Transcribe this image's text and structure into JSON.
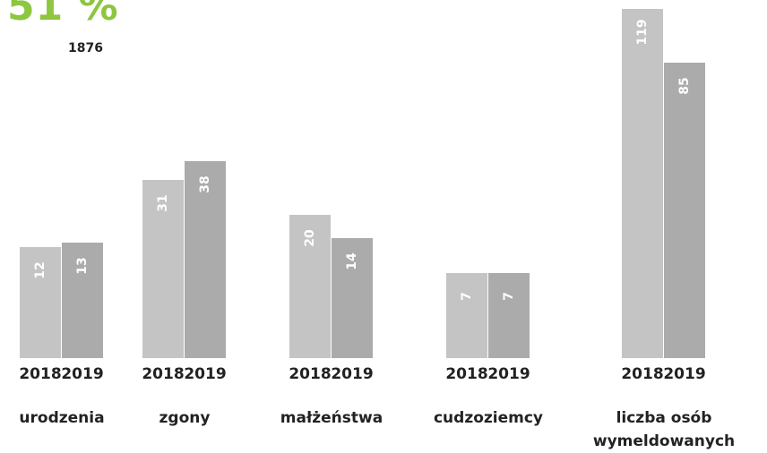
{
  "headline": "51 %",
  "count": "1876",
  "chart_data": {
    "type": "bar",
    "categories": [
      "urodzenia",
      "zgony",
      "małżeństwa",
      "cudzoziemcy",
      "liczba osób wymeldowanych"
    ],
    "series": [
      {
        "name": "2018",
        "color": "#c4c4c4",
        "values": [
          12,
          31,
          20,
          7,
          119
        ]
      },
      {
        "name": "2019",
        "color": "#ababab",
        "values": [
          13,
          38,
          14,
          7,
          85
        ]
      }
    ]
  }
}
